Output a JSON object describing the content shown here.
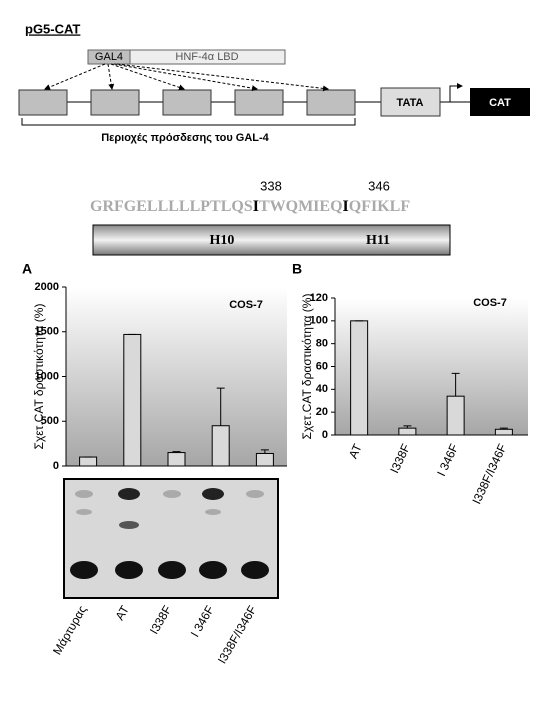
{
  "diagram": {
    "construct": "pG5-CAT",
    "gal4": "GAL4",
    "lbd": "HNF-4α LBD",
    "tata": "TATA",
    "cat": "CAT",
    "sites_label": "Περιοχές πρόσδεσης του GAL-4",
    "positions": [
      "338",
      "346"
    ],
    "sequence": [
      "GRFGELLLLLPTLQS",
      "I",
      "TWQMIEQ",
      "I",
      "QFIKLF"
    ],
    "helices": [
      "H10",
      "H11"
    ],
    "gel_labels": [
      "Μάρτυρας",
      "AT",
      "I338F",
      "I 346F",
      "I338F/I346F"
    ]
  },
  "chart_data": [
    {
      "type": "bar",
      "panel": "A",
      "annotation": "COS-7",
      "ylabel": "Σχετ.CAT δραστικότητα (%)",
      "categories": [
        "Μάρτυρας",
        "AT",
        "I338F",
        "I 346F",
        "I338F/I346F"
      ],
      "values": [
        100,
        1470,
        150,
        450,
        140
      ],
      "errors": [
        0,
        0,
        10,
        420,
        40
      ],
      "color": "#d9d9d9",
      "ylim": [
        0,
        2000
      ],
      "yticks": [
        0,
        500,
        1000,
        1500,
        2000
      ]
    },
    {
      "type": "bar",
      "panel": "B",
      "annotation": "COS-7",
      "ylabel": "Σχετ.CAT δραστικότητα (%)",
      "categories": [
        "AT",
        "I338F",
        "I 346F",
        "I338F/I346F"
      ],
      "values": [
        100,
        6,
        34,
        5
      ],
      "errors": [
        0,
        2,
        20,
        1
      ],
      "color": "#d9d9d9",
      "ylim": [
        0,
        120
      ],
      "yticks": [
        0,
        20,
        40,
        60,
        80,
        100,
        120
      ]
    }
  ]
}
